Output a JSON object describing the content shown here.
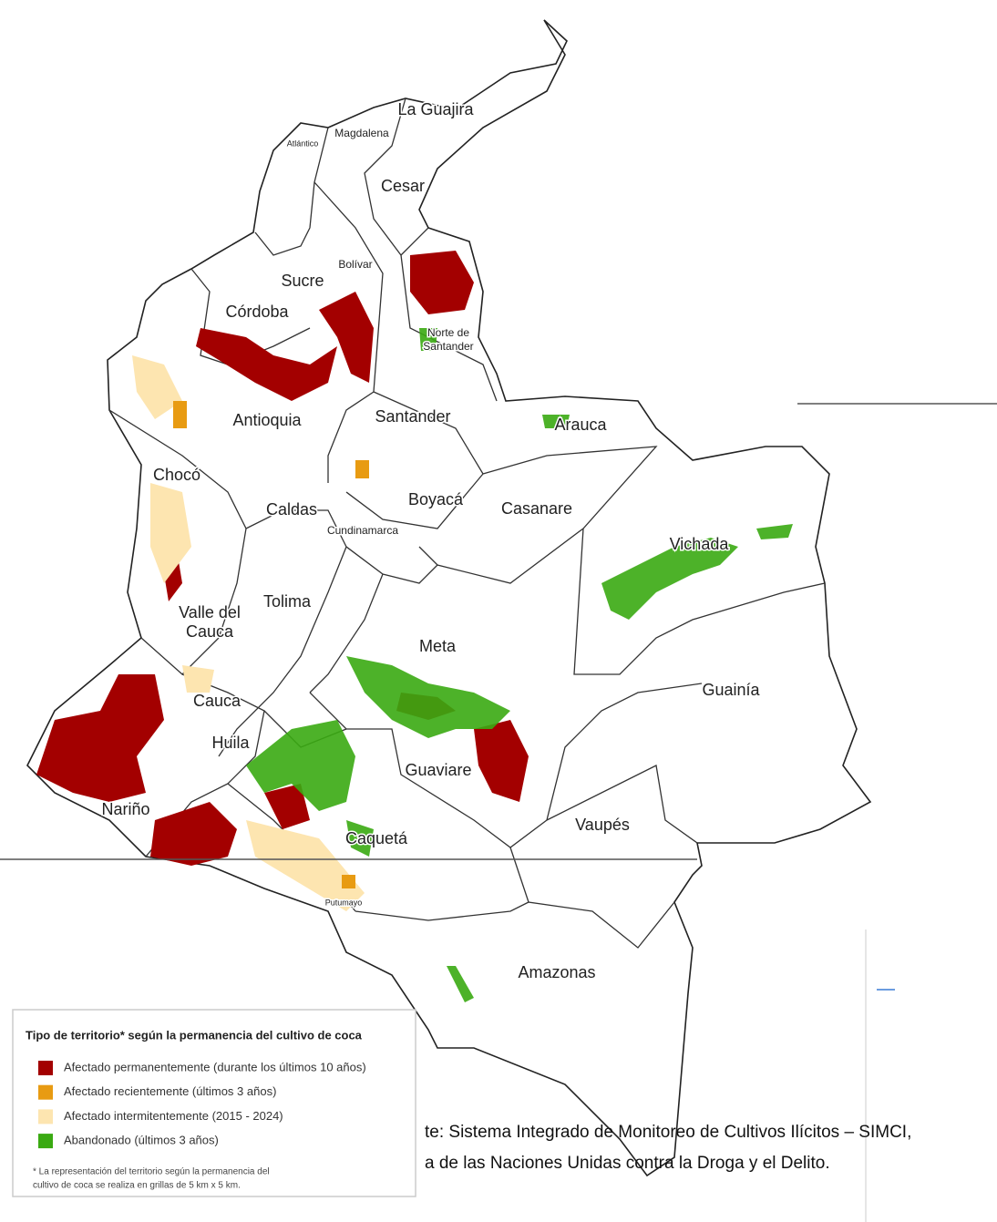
{
  "map": {
    "regions": [
      "La Guajira",
      "Magdalena",
      "Atlántico",
      "Cesar",
      "Bolívar",
      "Sucre",
      "Córdoba",
      "Norte de",
      "Santander",
      "Antioquia",
      "Santander",
      "Arauca",
      "Chocó",
      "Boyacá",
      "Casanare",
      "Caldas",
      "Cundinamarca",
      "Vichada",
      "Tolima",
      "Valle del",
      "Cauca",
      "Meta",
      "Guainía",
      "Cauca",
      "Huila",
      "Guaviare",
      "Nariño",
      "Vaupés",
      "Caquetá",
      "Putumayo",
      "Amazonas"
    ]
  },
  "legend": {
    "title": "Tipo de territorio* según la permanencia del cultivo de coca",
    "items": [
      {
        "label": "Afectado permanentemente (durante los últimos 10 años)",
        "color": "#a30000"
      },
      {
        "label": "Afectado recientemente (últimos 3 años)",
        "color": "#e89b12"
      },
      {
        "label": "Afectado intermitentemente (2015 - 2024)",
        "color": "#fde5b0"
      },
      {
        "label": "Abandonado (últimos 3 años)",
        "color": "#3aaa12"
      }
    ],
    "note": [
      "* La representación del territorio según la permanencia del",
      "cultivo de coca se realiza en grillas de 5 km x 5 km."
    ]
  },
  "source": [
    "te: Sistema Integrado de Monitoreo de Cultivos Ilícitos – SIMCI,",
    "a de las Naciones Unidas contra la Droga y el Delito."
  ]
}
